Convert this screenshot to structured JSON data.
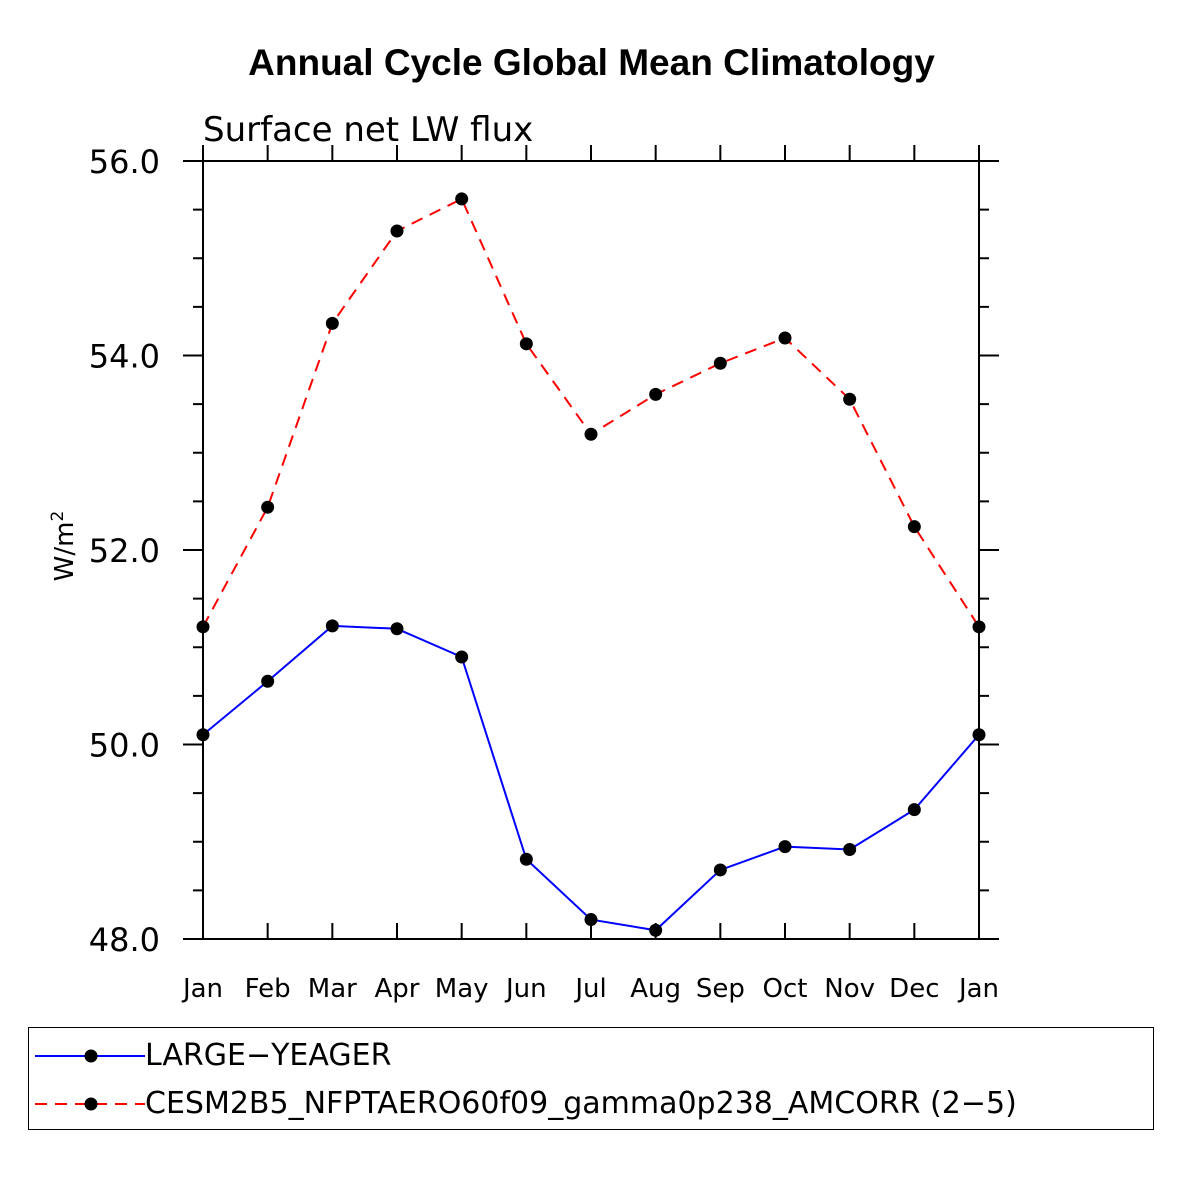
{
  "title": "Annual Cycle Global Mean Climatology",
  "chart_data": {
    "type": "line",
    "subtitle": "Surface net LW flux",
    "ylabel": "W/m",
    "ylabel_superscript": "2",
    "xlabel": "",
    "categories": [
      "Jan",
      "Feb",
      "Mar",
      "Apr",
      "May",
      "Jun",
      "Jul",
      "Aug",
      "Sep",
      "Oct",
      "Nov",
      "Dec",
      "Jan"
    ],
    "ylim": [
      48.0,
      56.0
    ],
    "yticks": [
      "48.0",
      "50.0",
      "52.0",
      "54.0",
      "56.0"
    ],
    "ytick_values": [
      48,
      50,
      52,
      54,
      56
    ],
    "series": [
      {
        "name": "LARGE−YEAGER",
        "color": "#0000ff",
        "dash": "solid",
        "values": [
          50.1,
          50.65,
          51.22,
          51.19,
          50.9,
          48.82,
          48.2,
          48.09,
          48.71,
          48.95,
          48.92,
          49.33,
          50.1
        ]
      },
      {
        "name": "CESM2B5_NFPTAERO60f09_gamma0p238_AMCORR (2−5)",
        "color": "#ff0000",
        "dash": "dashed",
        "values": [
          51.21,
          52.44,
          54.33,
          55.28,
          55.61,
          54.12,
          53.19,
          53.6,
          53.92,
          54.18,
          53.55,
          52.24,
          51.21
        ]
      }
    ],
    "legend_position": "bottom"
  }
}
